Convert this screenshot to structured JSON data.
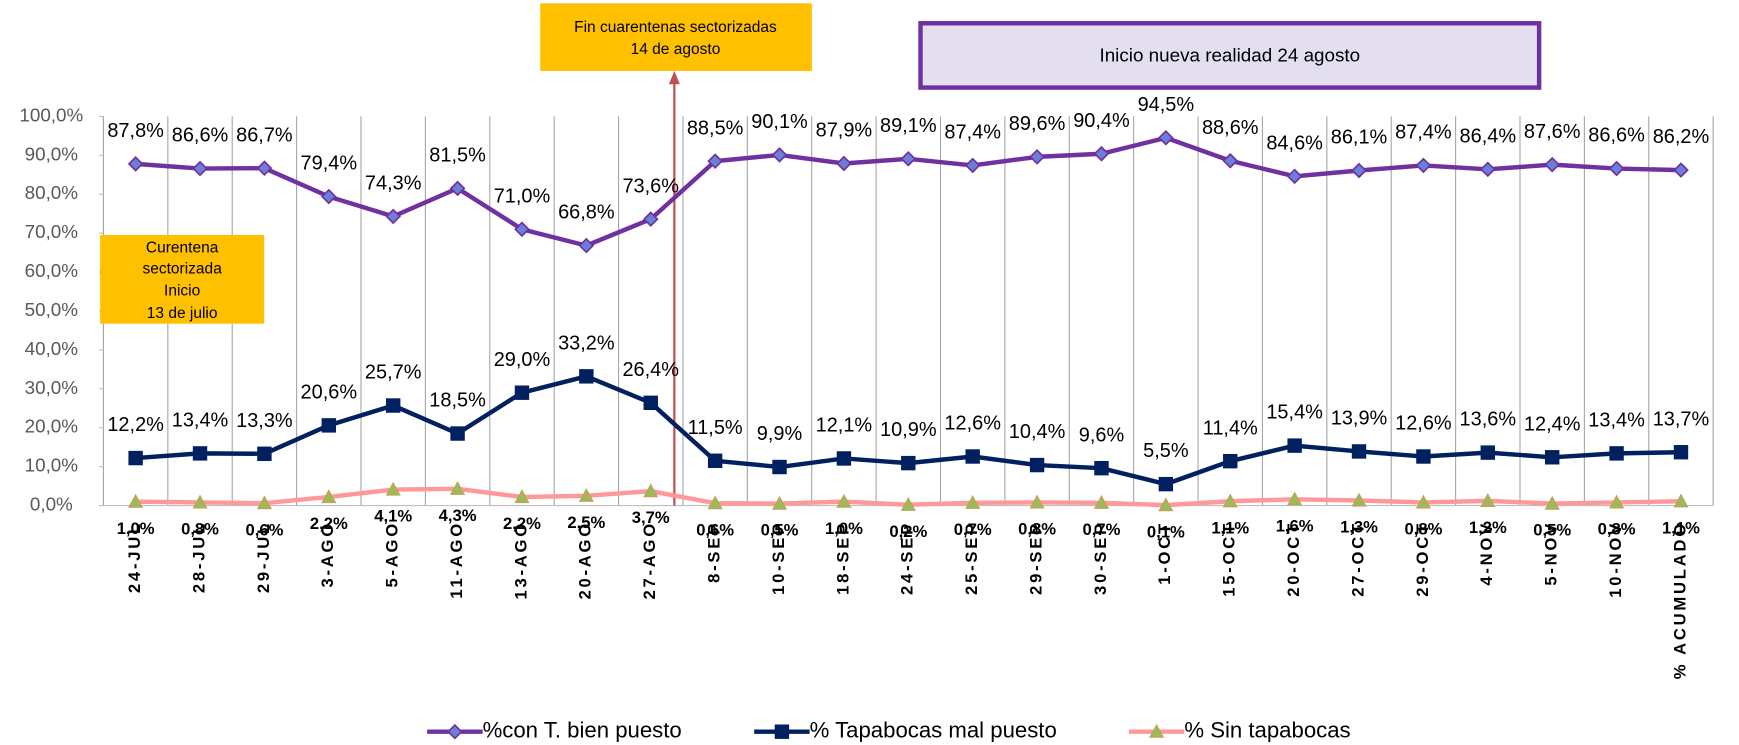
{
  "chart_data": {
    "type": "line",
    "categories": [
      "24-JUL",
      "28-JUL",
      "29-JUL",
      "3-AGO",
      "5-AGO",
      "11-AGO",
      "13-AGO",
      "20-AGO",
      "27-AGO",
      "8-SEP",
      "10-SEP",
      "18-SEP",
      "24-SEP",
      "25-SEP",
      "29-SEP",
      "30-SEP",
      "1-OCT",
      "15-OCT",
      "20-OCT",
      "27-OCT",
      "29-OCT",
      "4-NOV",
      "5-NOV",
      "10-NOV",
      "% ACUMULADO"
    ],
    "series": [
      {
        "name": "%con T. bien puesto",
        "color": "#7030a0",
        "marker": "diamond",
        "marker_color": "#6b7fd6",
        "values": [
          87.8,
          86.6,
          86.7,
          79.4,
          74.3,
          81.5,
          71.0,
          66.8,
          73.6,
          88.5,
          90.1,
          87.9,
          89.1,
          87.4,
          89.6,
          90.4,
          94.5,
          88.6,
          84.6,
          86.1,
          87.4,
          86.4,
          87.6,
          86.6,
          86.2
        ],
        "value_labels": [
          "87,8%",
          "86,6%",
          "86,7%",
          "79,4%",
          "74,3%",
          "81,5%",
          "71,0%",
          "66,8%",
          "73,6%",
          "88,5%",
          "90,1%",
          "87,9%",
          "89,1%",
          "87,4%",
          "89,6%",
          "90,4%",
          "94,5%",
          "88,6%",
          "84,6%",
          "86,1%",
          "87,4%",
          "86,4%",
          "87,6%",
          "86,6%",
          "86,2%"
        ]
      },
      {
        "name": "% Tapabocas mal puesto",
        "color": "#002060",
        "marker": "square",
        "marker_color": "#002060",
        "values": [
          12.2,
          13.4,
          13.3,
          20.6,
          25.7,
          18.5,
          29.0,
          33.2,
          26.4,
          11.5,
          9.9,
          12.1,
          10.9,
          12.6,
          10.4,
          9.6,
          5.5,
          11.4,
          15.4,
          13.9,
          12.6,
          13.6,
          12.4,
          13.4,
          13.7
        ],
        "value_labels": [
          "12,2%",
          "13,4%",
          "13,3%",
          "20,6%",
          "25,7%",
          "18,5%",
          "29,0%",
          "33,2%",
          "26,4%",
          "11,5%",
          "9,9%",
          "12,1%",
          "10,9%",
          "12,6%",
          "10,4%",
          "9,6%",
          "5,5%",
          "11,4%",
          "15,4%",
          "13,9%",
          "12,6%",
          "13,6%",
          "12,4%",
          "13,4%",
          "13,7%"
        ]
      },
      {
        "name": "% Sin tapabocas",
        "color": "#ff9999",
        "marker": "triangle",
        "marker_color": "#9bbb59",
        "values": [
          1.0,
          0.8,
          0.6,
          2.2,
          4.1,
          4.3,
          2.2,
          2.5,
          3.7,
          0.6,
          0.5,
          1.0,
          0.2,
          0.7,
          0.8,
          0.7,
          0.1,
          1.1,
          1.6,
          1.3,
          0.8,
          1.2,
          0.5,
          0.8,
          1.1
        ],
        "value_labels": [
          "1,0%",
          "0,8%",
          "0,6%",
          "2,2%",
          "4,1%",
          "4,3%",
          "2,2%",
          "2,5%",
          "3,7%",
          "0,6%",
          "0,5%",
          "1,0%",
          "0,2%",
          "0,7%",
          "0,8%",
          "0,7%",
          "0,1%",
          "1,1%",
          "1,6%",
          "1,3%",
          "0,8%",
          "1,2%",
          "0,5%",
          "0,8%",
          "1,1%"
        ]
      }
    ],
    "ylim": [
      0,
      100
    ],
    "yticks": [
      {
        "value": 0,
        "label": "0,0%"
      },
      {
        "value": 10,
        "label": "10,0%"
      },
      {
        "value": 20,
        "label": "20,0%"
      },
      {
        "value": 30,
        "label": "30,0%"
      },
      {
        "value": 40,
        "label": "40,0%"
      },
      {
        "value": 50,
        "label": "50,0%"
      },
      {
        "value": 60,
        "label": "60,0%"
      },
      {
        "value": 70,
        "label": "70,0%"
      },
      {
        "value": 80,
        "label": "80,0%"
      },
      {
        "value": 90,
        "label": "90,0%"
      },
      {
        "value": 100,
        "label": "100,0%"
      }
    ],
    "grid": "vertical",
    "legend": "bottom",
    "annotations": [
      {
        "lines": [
          "Fin cuarentenas sectorizadas",
          "14 de agosto"
        ]
      },
      {
        "lines": [
          "Inicio nueva realidad  24 agosto"
        ]
      },
      {
        "lines": [
          "Curentena",
          "sectorizada",
          "Inicio",
          "13 de julio"
        ]
      }
    ]
  }
}
